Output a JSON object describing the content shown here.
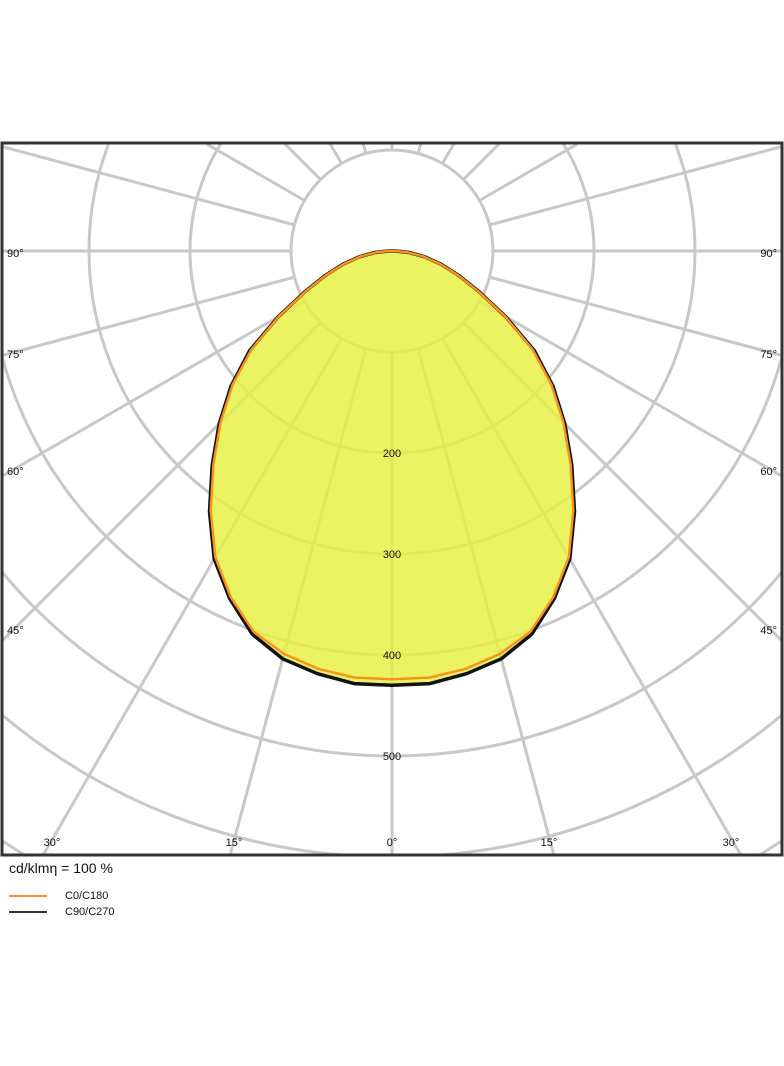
{
  "chart_data": {
    "type": "polar",
    "title": "",
    "unit_label": "cd/klmη = 100 %",
    "radial_ticks": [
      200,
      300,
      400,
      500
    ],
    "radial_grid": [
      100,
      200,
      300,
      400,
      500,
      600,
      700,
      800,
      900
    ],
    "angle_step": 15,
    "angle_labels_side": [
      "90°",
      "75°",
      "60°",
      "45°"
    ],
    "angle_labels_bottom": [
      "30°",
      "15°",
      "0°",
      "15°",
      "30°"
    ],
    "grid": true,
    "legend_placement": "bottom-left",
    "angles": [
      0,
      5,
      10,
      15,
      20,
      25,
      30,
      35,
      40,
      45,
      50,
      55,
      60,
      65,
      70,
      75,
      80,
      85,
      90
    ],
    "series": [
      {
        "name": "C0/C180",
        "color": "#f7931e",
        "values": [
          424,
          424,
          420,
          413,
          401,
          378,
          350,
          313,
          275,
          240,
          206,
          170,
          129,
          94,
          69,
          49,
          32,
          16,
          4
        ]
      },
      {
        "name": "C90/C270",
        "color": "#111111",
        "values": [
          430,
          430,
          425,
          418,
          404,
          380,
          352,
          315,
          277,
          242,
          208,
          172,
          130,
          95,
          70,
          50,
          33,
          17,
          4
        ]
      }
    ],
    "fill_color": "#e8f040"
  }
}
